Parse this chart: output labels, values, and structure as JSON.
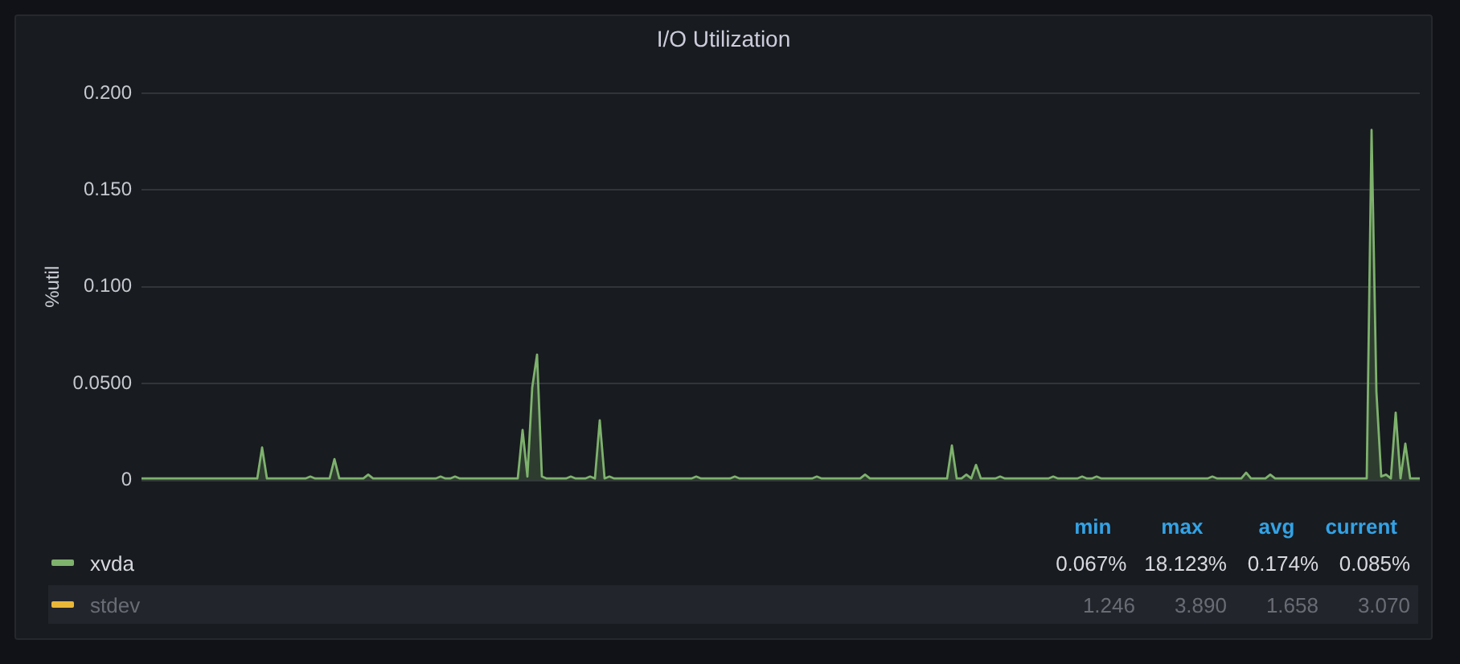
{
  "chart_data": {
    "type": "area",
    "title": "I/O Utilization",
    "ylabel": "%util",
    "categories": [
      null,
      null,
      null,
      null,
      null,
      null,
      null,
      null,
      null,
      null,
      null,
      null,
      null,
      null,
      null,
      null,
      null,
      null,
      null,
      null,
      null,
      null,
      null,
      null,
      null,
      null,
      null,
      null,
      null,
      null,
      null,
      null,
      null,
      null,
      null,
      null,
      null,
      null,
      null,
      null,
      null,
      null,
      null,
      null,
      null,
      null,
      null,
      null,
      null,
      null,
      null,
      null,
      null,
      null,
      null,
      null,
      null,
      null,
      null,
      null,
      null,
      null,
      null,
      null,
      null,
      null,
      null,
      null,
      null,
      null,
      null,
      null,
      null,
      null,
      null,
      null,
      null,
      null,
      null,
      null,
      null,
      null,
      null,
      null,
      null,
      null,
      null,
      null,
      null,
      null,
      null,
      null,
      null,
      null,
      null,
      null,
      null,
      null,
      null,
      null,
      null,
      null,
      null,
      null,
      null,
      null,
      null,
      null,
      null,
      null,
      null,
      null,
      null,
      null,
      null,
      null,
      null,
      null,
      null,
      null,
      null,
      null,
      null,
      null,
      null,
      null,
      null,
      null,
      null,
      null,
      null,
      null,
      null,
      null,
      null,
      null,
      null,
      null,
      null,
      null,
      null,
      null,
      null,
      null,
      null,
      null,
      null,
      null,
      null,
      null,
      null,
      null,
      null,
      null,
      null,
      null,
      null,
      null,
      null,
      null,
      null,
      null,
      null,
      null,
      null,
      null,
      null,
      null,
      null,
      null,
      null,
      null,
      null,
      null,
      null,
      null,
      null,
      null,
      null,
      null,
      null,
      null,
      null,
      null,
      null,
      null,
      null,
      null,
      null,
      null,
      null,
      null,
      null,
      null,
      null,
      null,
      null,
      null,
      null,
      null,
      null,
      null,
      null,
      null,
      null,
      null,
      null,
      null,
      null,
      null,
      null,
      null,
      null,
      null,
      null,
      null,
      null,
      null,
      null,
      null,
      null,
      null,
      null,
      null,
      null,
      null,
      null,
      null,
      null,
      null,
      null,
      null,
      null,
      null,
      null,
      null,
      null,
      null,
      null,
      null,
      null,
      null,
      null,
      null,
      null,
      null,
      null,
      null,
      null,
      null,
      null,
      null,
      null,
      null,
      null,
      null,
      null,
      null,
      null,
      null,
      null,
      null,
      null,
      null,
      null,
      null
    ],
    "series": [
      {
        "name": "xvda",
        "color": "#7eb26d",
        "values": [
          0.001,
          0.001,
          0.001,
          0.001,
          0.001,
          0.001,
          0.001,
          0.001,
          0.001,
          0.001,
          0.001,
          0.001,
          0.001,
          0.001,
          0.001,
          0.001,
          0.001,
          0.001,
          0.001,
          0.001,
          0.001,
          0.001,
          0.001,
          0.001,
          0.001,
          0.017,
          0.001,
          0.001,
          0.001,
          0.001,
          0.001,
          0.001,
          0.001,
          0.001,
          0.001,
          0.002,
          0.001,
          0.001,
          0.001,
          0.001,
          0.011,
          0.001,
          0.001,
          0.001,
          0.001,
          0.001,
          0.001,
          0.003,
          0.001,
          0.001,
          0.001,
          0.001,
          0.001,
          0.001,
          0.001,
          0.001,
          0.001,
          0.001,
          0.001,
          0.001,
          0.001,
          0.001,
          0.002,
          0.001,
          0.001,
          0.002,
          0.001,
          0.001,
          0.001,
          0.001,
          0.001,
          0.001,
          0.001,
          0.001,
          0.001,
          0.001,
          0.001,
          0.001,
          0.001,
          0.026,
          0.002,
          0.048,
          0.065,
          0.002,
          0.001,
          0.001,
          0.001,
          0.001,
          0.001,
          0.002,
          0.001,
          0.001,
          0.001,
          0.002,
          0.001,
          0.031,
          0.001,
          0.002,
          0.001,
          0.001,
          0.001,
          0.001,
          0.001,
          0.001,
          0.001,
          0.001,
          0.001,
          0.001,
          0.001,
          0.001,
          0.001,
          0.001,
          0.001,
          0.001,
          0.001,
          0.002,
          0.001,
          0.001,
          0.001,
          0.001,
          0.001,
          0.001,
          0.001,
          0.002,
          0.001,
          0.001,
          0.001,
          0.001,
          0.001,
          0.001,
          0.001,
          0.001,
          0.001,
          0.001,
          0.001,
          0.001,
          0.001,
          0.001,
          0.001,
          0.001,
          0.002,
          0.001,
          0.001,
          0.001,
          0.001,
          0.001,
          0.001,
          0.001,
          0.001,
          0.001,
          0.003,
          0.001,
          0.001,
          0.001,
          0.001,
          0.001,
          0.001,
          0.001,
          0.001,
          0.001,
          0.001,
          0.001,
          0.001,
          0.001,
          0.001,
          0.001,
          0.001,
          0.001,
          0.018,
          0.001,
          0.001,
          0.003,
          0.001,
          0.008,
          0.001,
          0.001,
          0.001,
          0.001,
          0.002,
          0.001,
          0.001,
          0.001,
          0.001,
          0.001,
          0.001,
          0.001,
          0.001,
          0.001,
          0.001,
          0.002,
          0.001,
          0.001,
          0.001,
          0.001,
          0.001,
          0.002,
          0.001,
          0.001,
          0.002,
          0.001,
          0.001,
          0.001,
          0.001,
          0.001,
          0.001,
          0.001,
          0.001,
          0.001,
          0.001,
          0.001,
          0.001,
          0.001,
          0.001,
          0.001,
          0.001,
          0.001,
          0.001,
          0.001,
          0.001,
          0.001,
          0.001,
          0.001,
          0.002,
          0.001,
          0.001,
          0.001,
          0.001,
          0.001,
          0.001,
          0.004,
          0.001,
          0.001,
          0.001,
          0.001,
          0.003,
          0.001,
          0.001,
          0.001,
          0.001,
          0.001,
          0.001,
          0.001,
          0.001,
          0.001,
          0.001,
          0.001,
          0.001,
          0.001,
          0.001,
          0.001,
          0.001,
          0.001,
          0.001,
          0.001,
          0.001,
          0.181,
          0.046,
          0.002,
          0.003,
          0.001,
          0.035,
          0.001,
          0.019,
          0.001,
          0.001,
          0.001
        ]
      },
      {
        "name": "stdev",
        "color": "#eab839",
        "values": [
          null,
          null,
          null,
          null,
          null,
          null,
          null,
          null,
          null,
          null,
          null,
          null,
          null,
          null,
          null,
          null,
          null,
          null,
          null,
          null,
          null,
          null,
          null,
          null,
          null,
          null,
          null,
          null,
          null,
          null,
          null,
          null,
          null,
          null,
          null,
          null,
          null,
          null,
          null,
          null,
          null,
          null,
          null,
          null,
          null,
          null,
          null,
          null,
          null,
          null,
          null,
          null,
          null,
          null,
          null,
          null,
          null,
          null,
          null,
          null,
          null,
          null,
          null,
          null,
          null,
          null,
          null,
          null,
          null,
          null,
          null,
          null,
          null,
          null,
          null,
          null,
          null,
          null,
          null,
          null,
          null,
          null,
          null,
          null,
          null,
          null,
          null,
          null,
          null,
          null,
          null,
          null,
          null,
          null,
          null,
          null,
          null,
          null,
          null,
          null,
          null,
          null,
          null,
          null,
          null,
          null,
          null,
          null,
          null,
          null,
          null,
          null,
          null,
          null,
          null,
          null,
          null,
          null,
          null,
          null,
          null,
          null,
          null,
          null,
          null,
          null,
          null,
          null,
          null,
          null,
          null,
          null,
          null,
          null,
          null,
          null,
          null,
          null,
          null,
          null,
          null,
          null,
          null,
          null,
          null,
          null,
          null,
          null,
          null,
          null,
          null,
          null,
          null,
          null,
          null,
          null,
          null,
          null,
          null,
          null,
          null,
          null,
          null,
          null,
          null,
          null,
          null,
          null,
          null,
          null,
          null,
          null,
          null,
          null,
          null,
          null,
          null,
          null,
          null,
          null,
          null,
          null,
          null,
          null,
          null,
          null,
          null,
          null,
          null,
          null,
          null,
          null,
          null,
          null,
          null,
          null,
          null,
          null,
          null,
          null,
          null,
          null,
          null,
          null,
          null,
          null,
          null,
          null,
          null,
          null,
          null,
          null,
          null,
          null,
          null,
          null,
          null,
          null,
          null,
          null,
          null,
          null,
          null,
          null,
          null,
          null,
          null,
          null,
          null,
          null,
          null,
          null,
          null,
          null,
          null,
          null,
          null,
          null,
          null,
          null,
          null,
          null,
          null,
          null,
          null,
          null,
          null,
          null,
          null,
          null,
          null,
          null,
          null,
          null,
          null,
          null,
          null,
          null,
          null,
          null,
          null,
          null,
          null,
          null,
          null,
          null
        ]
      }
    ],
    "ylim": [
      0,
      0.2
    ],
    "yticks": [
      0,
      {
        "value": 0.05,
        "label": "0.0500"
      },
      {
        "value": 0.1,
        "label": "0.100"
      },
      {
        "value": 0.15,
        "label": "0.150"
      },
      {
        "value": 0.2,
        "label": "0.200"
      }
    ],
    "grid": "y",
    "tick_labels": "y",
    "legend": "bottom",
    "annotations": [
      "min",
      "max",
      "avg",
      "current",
      "0.067%",
      "18.123%",
      "0.174%",
      "0.085%",
      "1.246",
      "3.890",
      "1.658",
      "3.070"
    ]
  }
}
